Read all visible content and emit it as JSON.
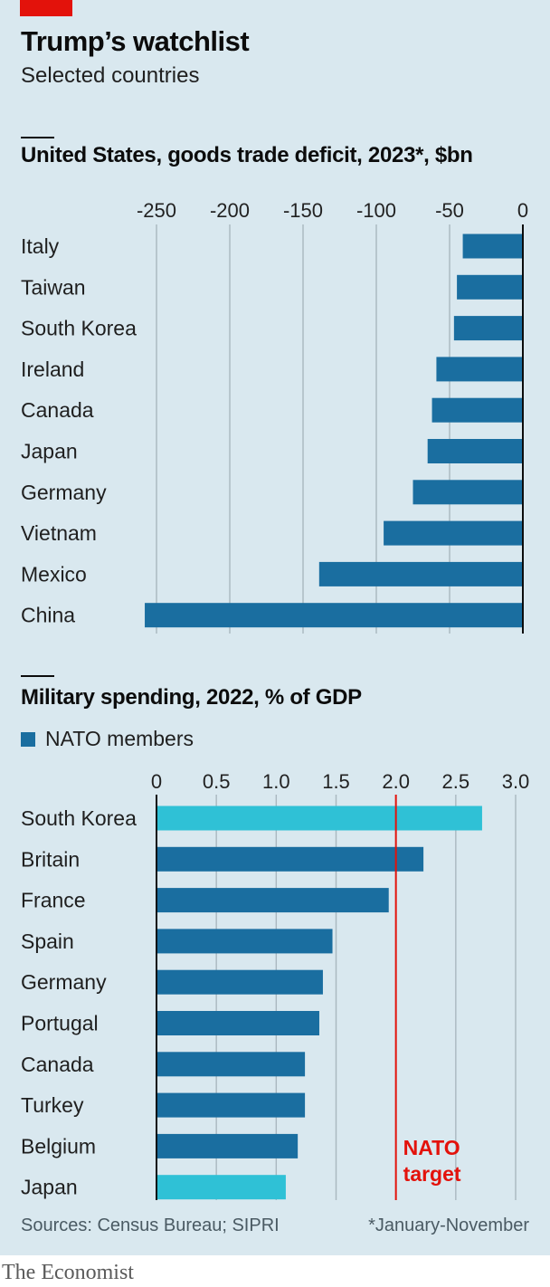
{
  "header": {
    "title": "Trump’s watchlist",
    "subtitle": "Selected countries"
  },
  "colors": {
    "nato": "#1a6ea0",
    "non_nato": "#2fc1d6",
    "target": "#e3120b",
    "gridline": "#a9b7bf"
  },
  "chart_data": [
    {
      "type": "bar",
      "orientation": "horizontal",
      "title": "United States, goods trade deficit, 2023*, $bn",
      "categories": [
        "Italy",
        "Taiwan",
        "South Korea",
        "Ireland",
        "Canada",
        "Japan",
        "Germany",
        "Vietnam",
        "Mexico",
        "China"
      ],
      "values": [
        -41,
        -45,
        -47,
        -59,
        -62,
        -65,
        -75,
        -95,
        -139,
        -258
      ],
      "xlim": [
        -250,
        0
      ],
      "ticks": [
        "-250",
        "-200",
        "-150",
        "-100",
        "-50",
        "0"
      ],
      "tick_values": [
        -250,
        -200,
        -150,
        -100,
        -50,
        0
      ],
      "grid": true
    },
    {
      "type": "bar",
      "orientation": "horizontal",
      "title": "Military spending, 2022, % of GDP",
      "legend": [
        {
          "label": "NATO members"
        }
      ],
      "categories": [
        "South Korea",
        "Britain",
        "France",
        "Spain",
        "Germany",
        "Portugal",
        "Canada",
        "Turkey",
        "Belgium",
        "Japan"
      ],
      "values": [
        2.72,
        2.23,
        1.94,
        1.47,
        1.39,
        1.36,
        1.24,
        1.24,
        1.18,
        1.08
      ],
      "nato_member": [
        false,
        true,
        true,
        true,
        true,
        true,
        true,
        true,
        true,
        false
      ],
      "xlim": [
        0,
        3.0
      ],
      "ticks": [
        "0",
        "0.5",
        "1.0",
        "1.5",
        "2.0",
        "2.5",
        "3.0"
      ],
      "tick_values": [
        0,
        0.5,
        1.0,
        1.5,
        2.0,
        2.5,
        3.0
      ],
      "grid": true,
      "reference_line": {
        "value": 2.0,
        "label_line1": "NATO",
        "label_line2": "target"
      }
    }
  ],
  "footer": {
    "sources": "Sources: Census Bureau; SIPRI",
    "footnote": "*January-November",
    "brand": "The Economist"
  }
}
